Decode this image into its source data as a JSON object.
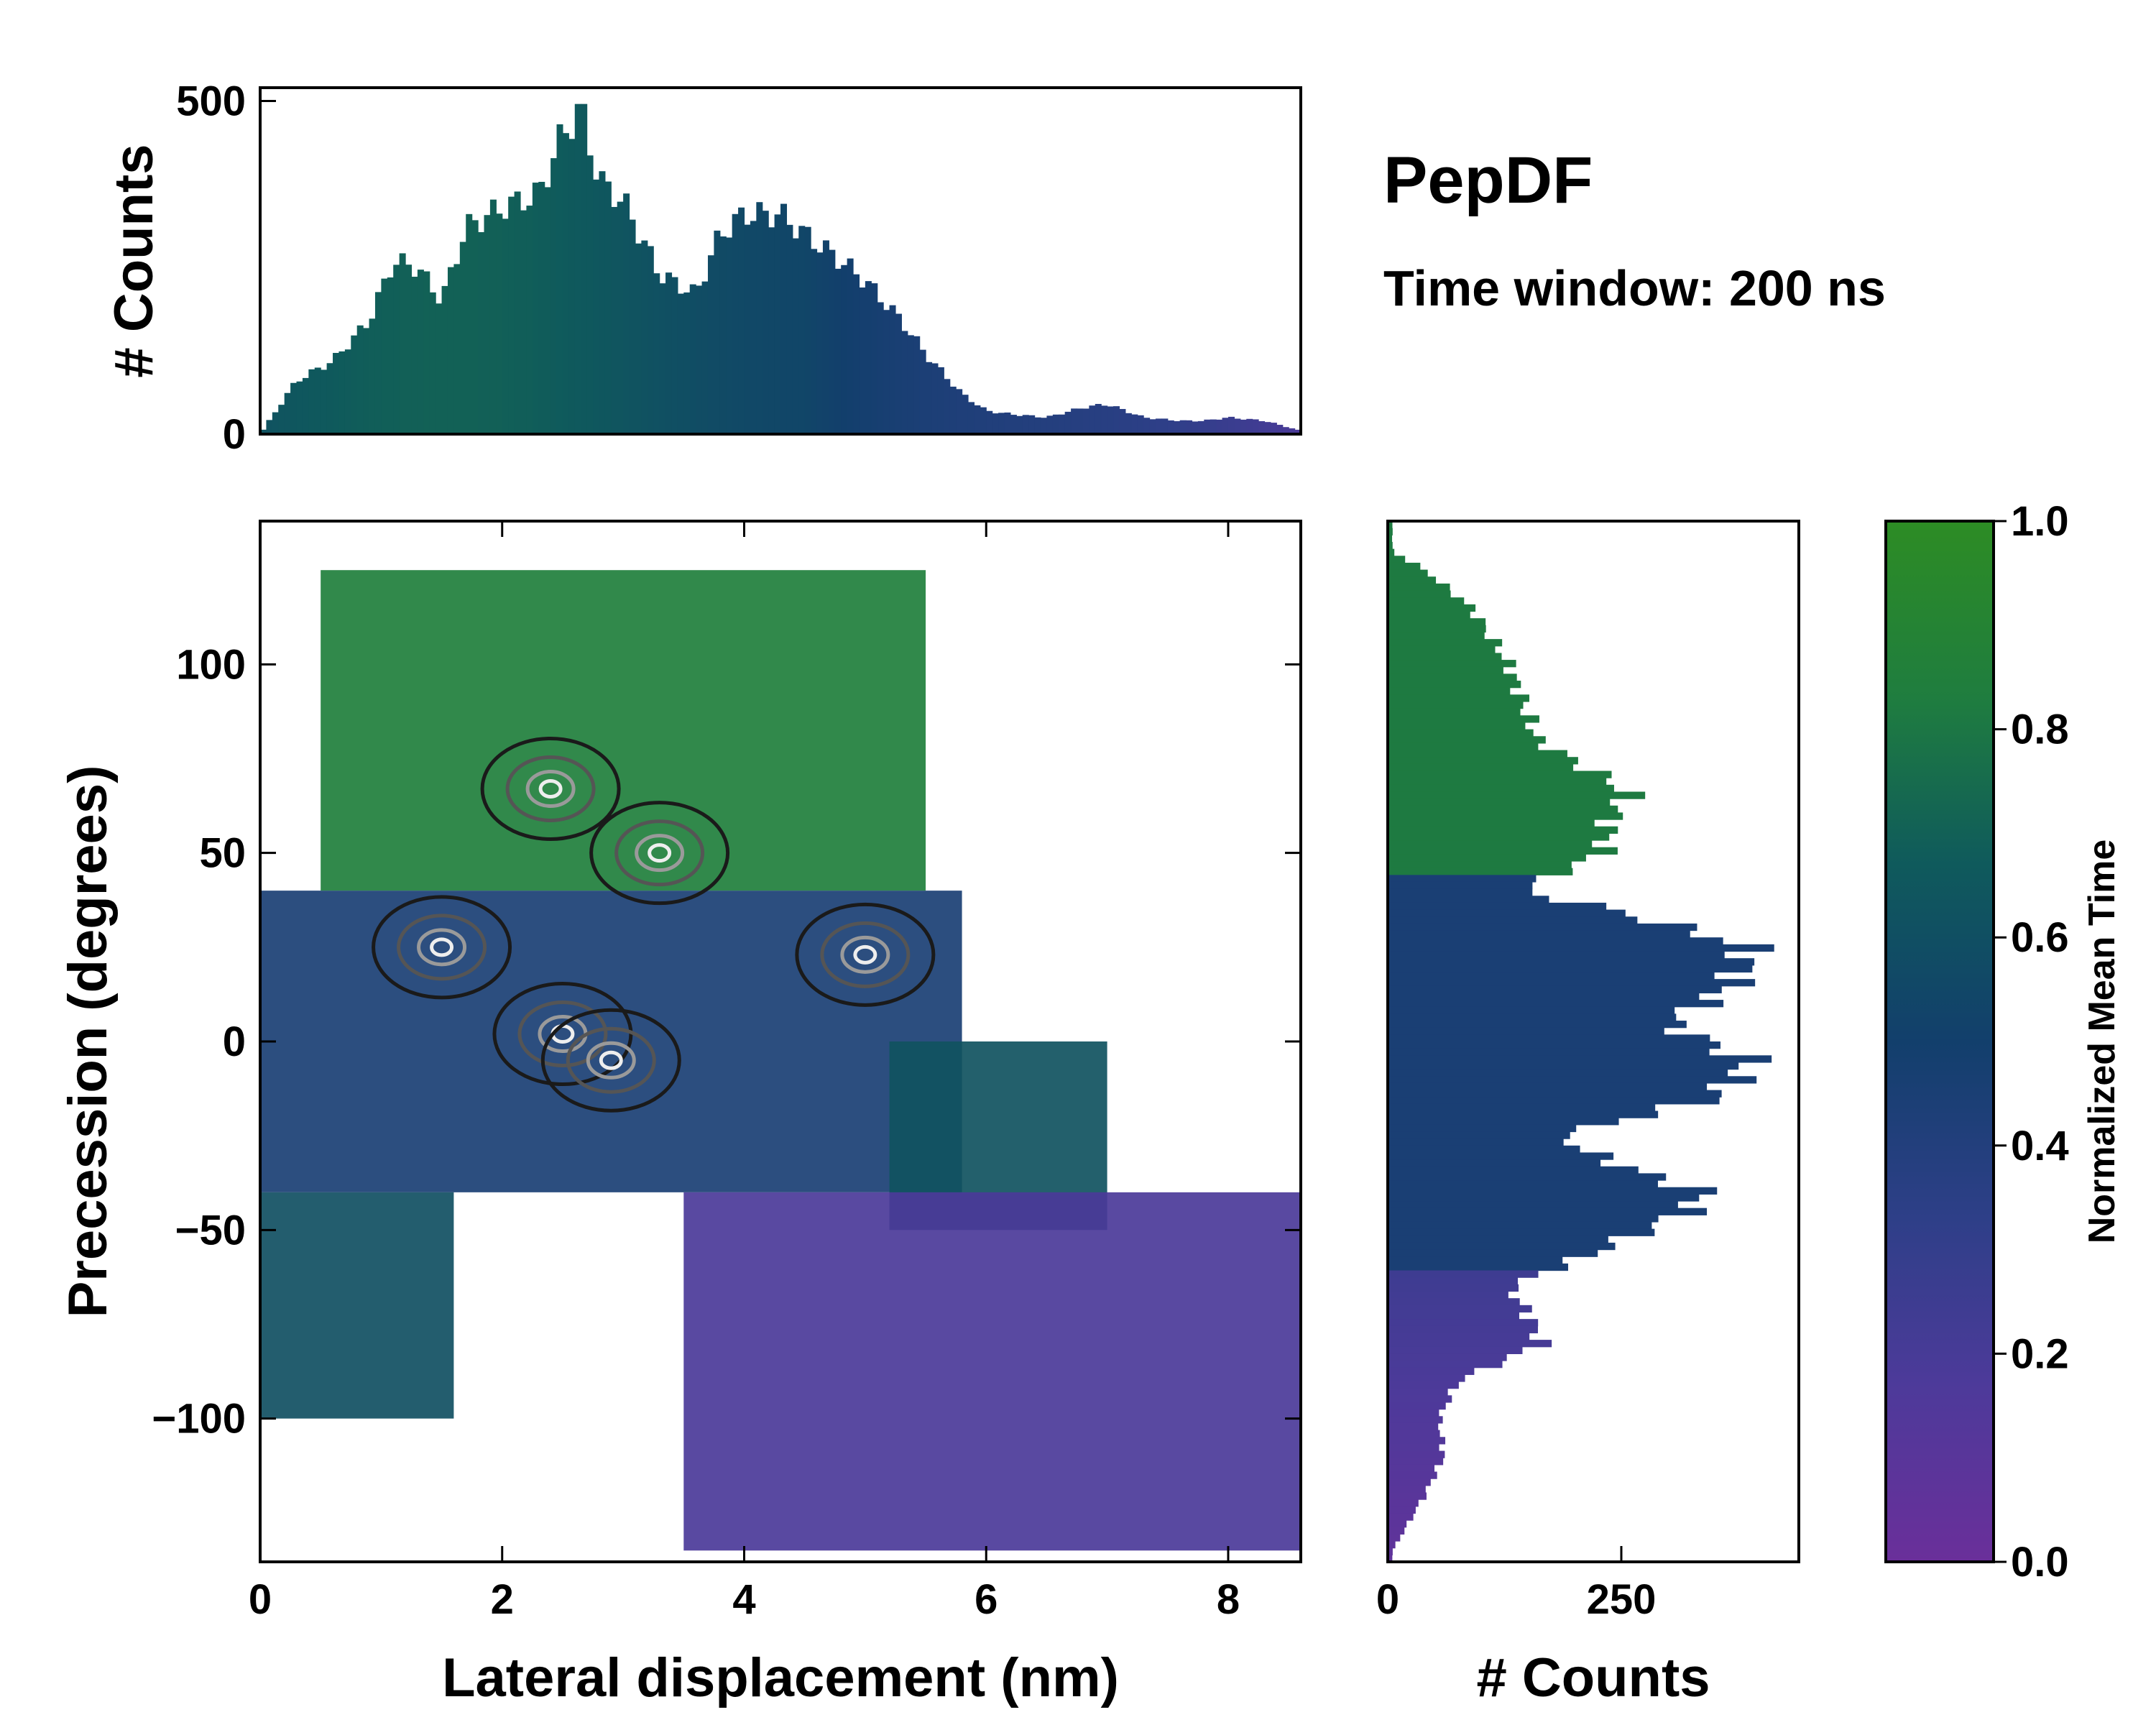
{
  "chart_data": {
    "type": "heatmap",
    "title": "PepDF",
    "subtitle": "Time window: 200 ns",
    "main": {
      "xlabel": "Lateral displacement (nm)",
      "ylabel": "Precession (degrees)",
      "xlim": [
        0,
        8.6
      ],
      "ylim": [
        -138,
        138
      ],
      "xticks": [
        0,
        2,
        4,
        6,
        8
      ],
      "yticks": [
        100,
        50,
        0,
        -50,
        -100
      ],
      "ytick_labels": [
        "100",
        "50",
        "0",
        "−50",
        "−100"
      ],
      "color_regions": [
        {
          "name": "upper-green",
          "x_range": [
            0.5,
            5.5
          ],
          "y_range": [
            40,
            125
          ],
          "value": 0.85
        },
        {
          "name": "central-blue",
          "x_range": [
            0.0,
            5.8
          ],
          "y_range": [
            -40,
            40
          ],
          "value": 0.45
        },
        {
          "name": "left-teal",
          "x_range": [
            0.0,
            1.6
          ],
          "y_range": [
            -100,
            -40
          ],
          "value": 0.6
        },
        {
          "name": "right-teal",
          "x_range": [
            5.2,
            7.0
          ],
          "y_range": [
            -50,
            0
          ],
          "value": 0.62
        },
        {
          "name": "lower-purple",
          "x_range": [
            3.5,
            8.6
          ],
          "y_range": [
            -135,
            -40
          ],
          "value": 0.18
        }
      ],
      "density_peaks": [
        {
          "x": 2.4,
          "y": 67
        },
        {
          "x": 2.5,
          "y": 2
        },
        {
          "x": 2.9,
          "y": -5
        },
        {
          "x": 1.5,
          "y": 25
        },
        {
          "x": 3.3,
          "y": 50
        },
        {
          "x": 5.0,
          "y": 23
        }
      ]
    },
    "top_histogram": {
      "ylabel": "# Counts",
      "ylim": [
        0,
        520
      ],
      "yticks": [
        0,
        500
      ],
      "anchors_x": [
        0.0,
        0.3,
        0.6,
        0.9,
        1.1,
        1.3,
        1.5,
        1.7,
        2.0,
        2.3,
        2.5,
        2.65,
        2.8,
        3.0,
        3.3,
        3.6,
        3.8,
        4.0,
        4.3,
        4.5,
        4.8,
        5.0,
        5.3,
        5.5,
        5.8,
        6.0,
        6.2,
        6.5,
        6.8,
        7.0,
        7.3,
        7.6,
        7.8,
        8.0,
        8.3,
        8.6
      ],
      "anchors_counts": [
        0,
        80,
        110,
        170,
        260,
        250,
        200,
        310,
        340,
        360,
        450,
        490,
        380,
        350,
        240,
        210,
        300,
        330,
        330,
        300,
        260,
        230,
        170,
        120,
        60,
        35,
        30,
        25,
        40,
        45,
        25,
        20,
        20,
        25,
        20,
        5
      ]
    },
    "right_histogram": {
      "xlabel": "# Counts",
      "xlim": [
        0,
        440
      ],
      "xticks": [
        0,
        250
      ],
      "anchors_y": [
        -135,
        -120,
        -110,
        -100,
        -90,
        -80,
        -72,
        -65,
        -55,
        -45,
        -40,
        -33,
        -25,
        -15,
        -5,
        0,
        5,
        15,
        25,
        35,
        40,
        50,
        60,
        66,
        80,
        100,
        115,
        125,
        130
      ],
      "anchors_counts": [
        5,
        40,
        60,
        55,
        75,
        165,
        150,
        130,
        230,
        320,
        340,
        250,
        180,
        350,
        390,
        340,
        300,
        370,
        390,
        240,
        140,
        230,
        240,
        260,
        160,
        130,
        90,
        40,
        5
      ]
    },
    "colorbar": {
      "label": "Normalized Mean Time",
      "range": [
        0.0,
        1.0
      ],
      "ticks": [
        "1.0",
        "0.8",
        "0.6",
        "0.4",
        "0.2",
        "0.0"
      ],
      "colors": [
        "#6a2f9a",
        "#4d3a9a",
        "#2e3f88",
        "#123f6c",
        "#0f5a5c",
        "#1f7d3f",
        "#2d8c24"
      ]
    }
  }
}
